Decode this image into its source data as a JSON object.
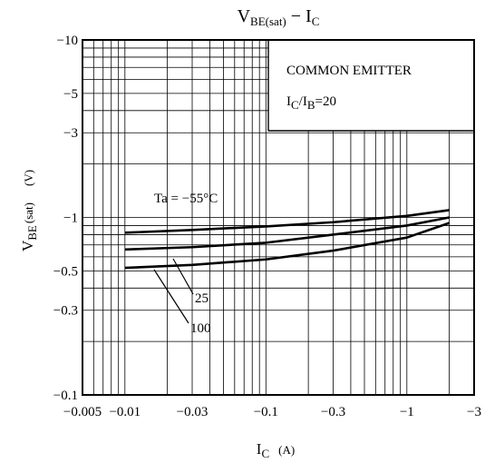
{
  "chart_data": {
    "type": "line",
    "title": {
      "main": "V",
      "sub": "BE(sat)",
      "dash": " − ",
      "main2": "I",
      "sub2": "C"
    },
    "xlabel": {
      "main": "I",
      "sub": "C",
      "unit": "(A)"
    },
    "ylabel": {
      "main": "V",
      "sub": "BE",
      "rest": "(sat)",
      "unit": "(V)"
    },
    "x_scale": "log",
    "y_scale": "log",
    "x_axis_values": "negative (magnitude plotted on log scale)",
    "xlim": [
      -0.005,
      -3
    ],
    "ylim": [
      -0.1,
      -10
    ],
    "x_ticks": [
      {
        "value": -0.005,
        "label": "−0.005"
      },
      {
        "value": -0.01,
        "label": "−0.01"
      },
      {
        "value": -0.03,
        "label": "−0.03"
      },
      {
        "value": -0.1,
        "label": "−0.1"
      },
      {
        "value": -0.3,
        "label": "−0.3"
      },
      {
        "value": -1,
        "label": "−1"
      },
      {
        "value": -3,
        "label": "−3"
      }
    ],
    "y_ticks": [
      {
        "value": -0.1,
        "label": "−0.1"
      },
      {
        "value": -0.3,
        "label": "−0.3"
      },
      {
        "value": -0.5,
        "label": "−0.5"
      },
      {
        "value": -1,
        "label": "−1"
      },
      {
        "value": -3,
        "label": "−3"
      },
      {
        "value": -5,
        "label": "−5"
      },
      {
        "value": -10,
        "label": "−10"
      }
    ],
    "grid": true,
    "conditions": {
      "line1": "COMMON EMITTER",
      "line2_main": "I",
      "line2_sub1": "C",
      "line2_mid": "/I",
      "line2_sub2": "B",
      "line2_end": "=20"
    },
    "series": [
      {
        "name": "Ta = −55°C",
        "x": [
          -0.01,
          -0.03,
          -0.1,
          -0.3,
          -1,
          -2
        ],
        "y": [
          -0.82,
          -0.85,
          -0.89,
          -0.94,
          -1.02,
          -1.1
        ]
      },
      {
        "name": "25",
        "x": [
          -0.01,
          -0.03,
          -0.1,
          -0.3,
          -1,
          -2
        ],
        "y": [
          -0.66,
          -0.68,
          -0.72,
          -0.8,
          -0.9,
          -1.0
        ]
      },
      {
        "name": "100",
        "x": [
          -0.01,
          -0.03,
          -0.1,
          -0.3,
          -1,
          -2
        ],
        "y": [
          -0.52,
          -0.54,
          -0.58,
          -0.65,
          -0.77,
          -0.93
        ]
      }
    ],
    "series_labels": [
      {
        "text": "Ta = −55°C",
        "series": 0
      },
      {
        "text": "25",
        "series": 1
      },
      {
        "text": "100",
        "series": 2
      }
    ]
  }
}
